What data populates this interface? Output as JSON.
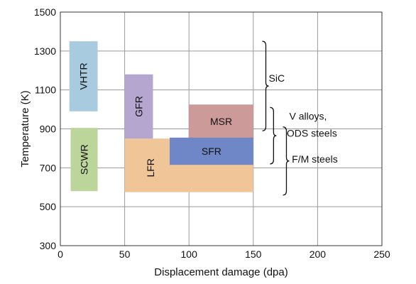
{
  "chart_data": {
    "type": "range-chart",
    "title": "",
    "xlabel": "Displacement damage (dpa)",
    "ylabel": "Temperature (K)",
    "xlim": [
      0,
      250
    ],
    "ylim": [
      300,
      1500
    ],
    "xticks": [
      0,
      50,
      100,
      150,
      200,
      250
    ],
    "yticks": [
      300,
      500,
      700,
      900,
      1100,
      1300,
      1500
    ],
    "grid": true,
    "regions": [
      {
        "name": "VHTR",
        "x": [
          7,
          29
        ],
        "y": [
          990,
          1350
        ],
        "color": "#a9cbe0",
        "label_rotated": true
      },
      {
        "name": "SCWR",
        "x": [
          8,
          29
        ],
        "y": [
          580,
          905
        ],
        "color": "#bcd59a",
        "label_rotated": true
      },
      {
        "name": "LFR",
        "x": [
          50,
          150
        ],
        "y": [
          575,
          850
        ],
        "color": "#f0c597",
        "label_rotated": true,
        "label_at": [
          70,
          700
        ]
      },
      {
        "name": "GFR",
        "x": [
          50,
          72
        ],
        "y": [
          850,
          1180
        ],
        "color": "#b4a6cf",
        "label_rotated": true
      },
      {
        "name": "MSR",
        "x": [
          100,
          150
        ],
        "y": [
          850,
          1025
        ],
        "color": "#cc9a98",
        "label_rotated": false
      },
      {
        "name": "SFR",
        "x": [
          85,
          150
        ],
        "y": [
          715,
          855
        ],
        "color": "#6f87c6",
        "label_rotated": false
      }
    ],
    "annotations": [
      {
        "label": "SiC",
        "y_range": [
          890,
          1350
        ],
        "bracket_x": 157,
        "label_at": [
          162,
          1160
        ]
      },
      {
        "label": "V alloys,",
        "y_range": [
          720,
          1010
        ],
        "bracket_x": 163,
        "label_at": [
          178,
          965
        ]
      },
      {
        "label": "ODS steels",
        "y_range": [
          720,
          1010
        ],
        "bracket_x": 163,
        "label_at": [
          176,
          878
        ]
      },
      {
        "label": "F/M steels",
        "y_range": [
          560,
          910
        ],
        "bracket_x": 173,
        "label_at": [
          180,
          745
        ]
      }
    ]
  }
}
